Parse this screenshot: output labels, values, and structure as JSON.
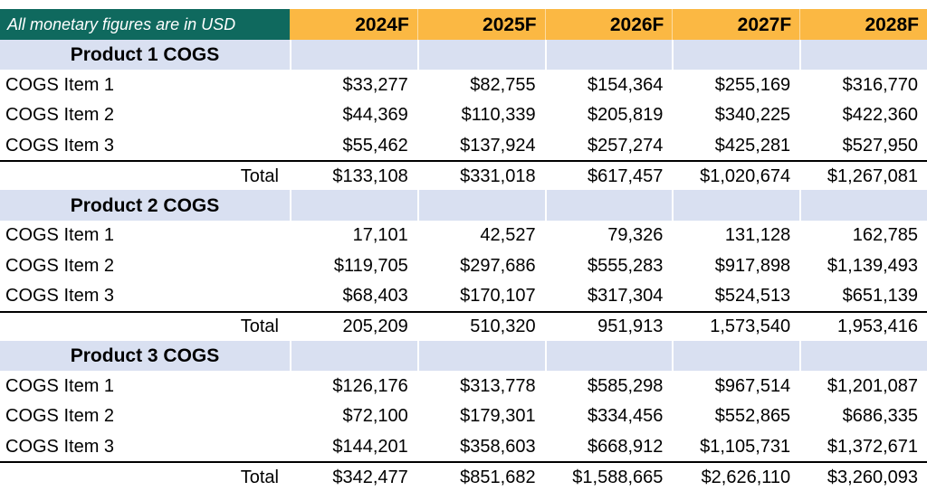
{
  "table": {
    "note": "All monetary figures are in USD",
    "columns": [
      "2024F",
      "2025F",
      "2026F",
      "2027F",
      "2028F"
    ],
    "total_label": "Total",
    "sections": [
      {
        "title": "Product 1 COGS",
        "rows": [
          {
            "label": "COGS Item 1",
            "values": [
              "$33,277",
              "$82,755",
              "$154,364",
              "$255,169",
              "$316,770"
            ]
          },
          {
            "label": "COGS Item 2",
            "values": [
              "$44,369",
              "$110,339",
              "$205,819",
              "$340,225",
              "$422,360"
            ]
          },
          {
            "label": "COGS Item 3",
            "values": [
              "$55,462",
              "$137,924",
              "$257,274",
              "$425,281",
              "$527,950"
            ]
          }
        ],
        "total_values": [
          "$133,108",
          "$331,018",
          "$617,457",
          "$1,020,674",
          "$1,267,081"
        ]
      },
      {
        "title": "Product 2 COGS",
        "rows": [
          {
            "label": "COGS Item 1",
            "values": [
              "17,101",
              "42,527",
              "79,326",
              "131,128",
              "162,785"
            ]
          },
          {
            "label": "COGS Item 2",
            "values": [
              "$119,705",
              "$297,686",
              "$555,283",
              "$917,898",
              "$1,139,493"
            ]
          },
          {
            "label": "COGS Item 3",
            "values": [
              "$68,403",
              "$170,107",
              "$317,304",
              "$524,513",
              "$651,139"
            ]
          }
        ],
        "total_values": [
          "205,209",
          "510,320",
          "951,913",
          "1,573,540",
          "1,953,416"
        ]
      },
      {
        "title": "Product 3 COGS",
        "rows": [
          {
            "label": "COGS Item 1",
            "values": [
              "$126,176",
              "$313,778",
              "$585,298",
              "$967,514",
              "$1,201,087"
            ]
          },
          {
            "label": "COGS Item 2",
            "values": [
              "$72,100",
              "$179,301",
              "$334,456",
              "$552,865",
              "$686,335"
            ]
          },
          {
            "label": "COGS Item 3",
            "values": [
              "$144,201",
              "$358,603",
              "$668,912",
              "$1,105,731",
              "$1,372,671"
            ]
          }
        ],
        "total_values": [
          "$342,477",
          "$851,682",
          "$1,588,665",
          "$2,626,110",
          "$3,260,093"
        ]
      }
    ]
  },
  "colors": {
    "note_bg": "#0F695E",
    "year_header_bg": "#FBB843",
    "section_band_bg": "#D9E0F1",
    "text": "#000000"
  }
}
